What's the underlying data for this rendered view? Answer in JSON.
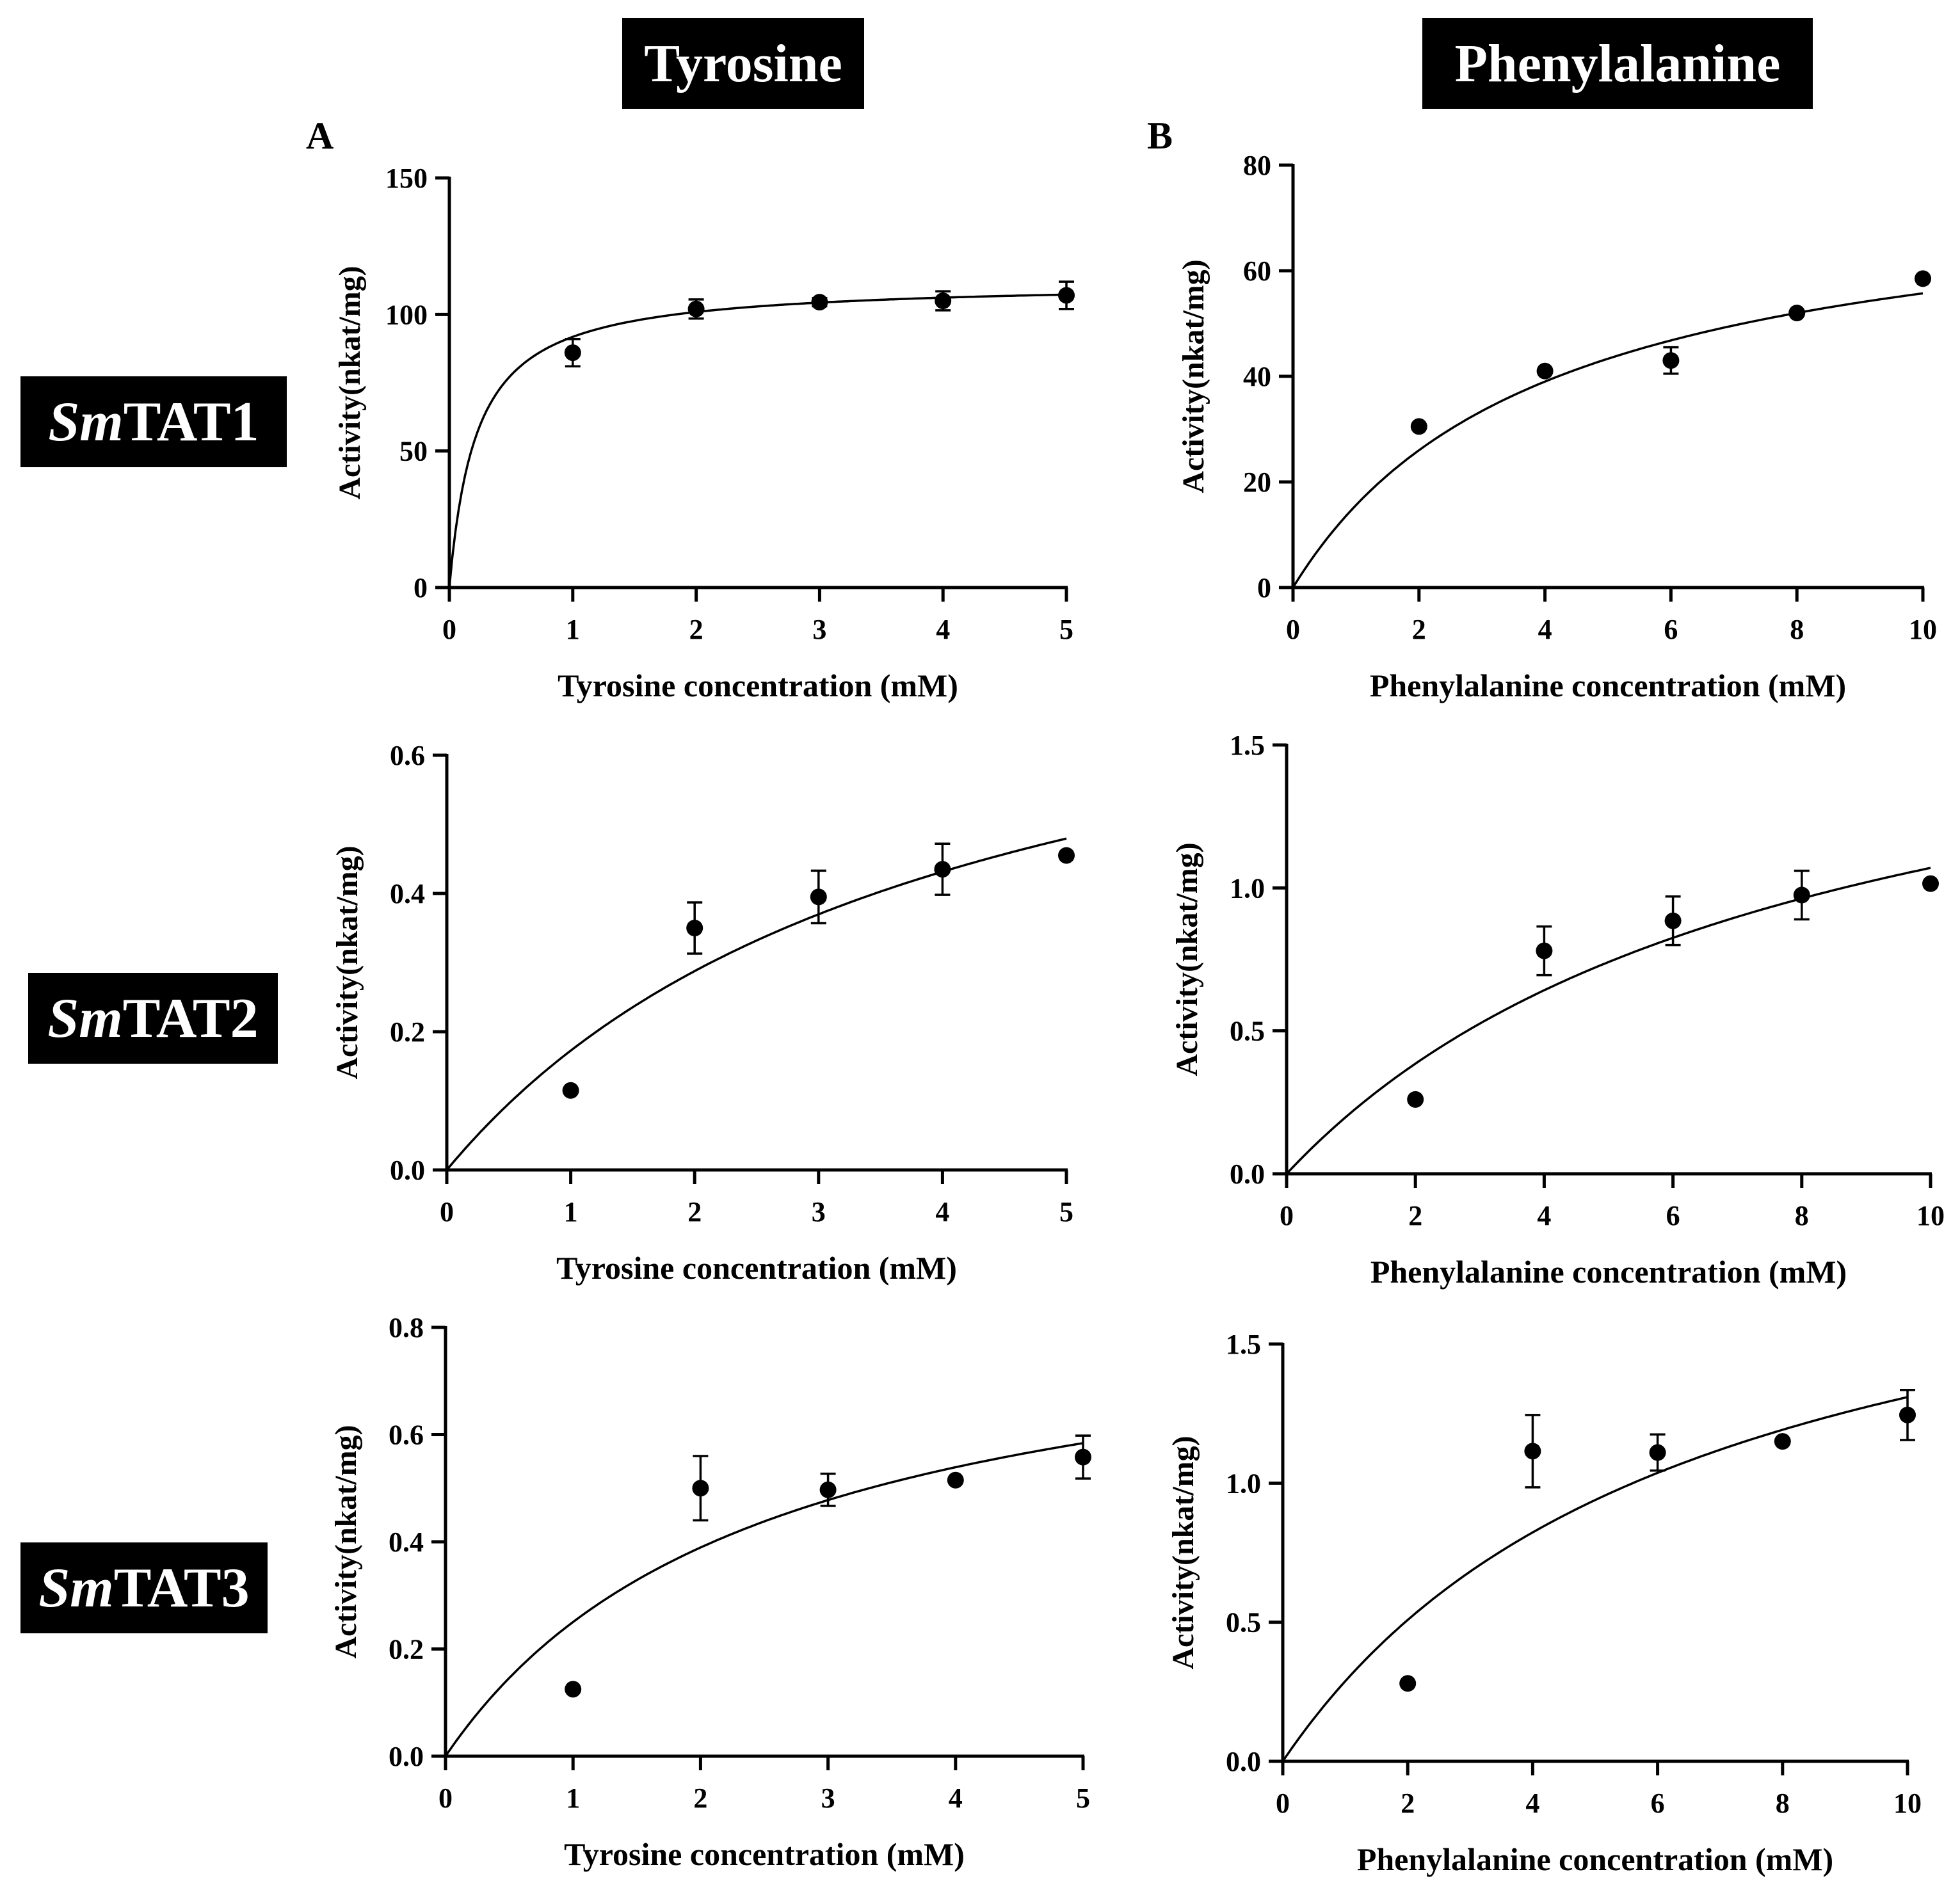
{
  "columns": [
    {
      "label": "Tyrosine",
      "panel_letter": "A"
    },
    {
      "label": "Phenylalanine",
      "panel_letter": "B"
    }
  ],
  "rows": [
    {
      "italic": "Sm",
      "rest": "TAT1"
    },
    {
      "italic": "Sm",
      "rest": "TAT2"
    },
    {
      "italic": "Sm",
      "rest": "TAT3"
    }
  ],
  "chart_data": [
    {
      "type": "scatter",
      "enzyme": "SmTAT1",
      "substrate": "Tyrosine",
      "xlabel": "Tyrosine concentration (mM)",
      "ylabel": "Activity(nkat/mg)",
      "xlim": [
        0,
        5
      ],
      "ylim": [
        0,
        150
      ],
      "xticks": [
        0,
        1,
        2,
        3,
        4,
        5
      ],
      "yticks": [
        0,
        50,
        100,
        150
      ],
      "points": [
        {
          "x": 1,
          "y": 86,
          "err": 5
        },
        {
          "x": 2,
          "y": 102,
          "err": 3.5
        },
        {
          "x": 3,
          "y": 104.5,
          "err": 1.5
        },
        {
          "x": 4,
          "y": 105,
          "err": 3.5
        },
        {
          "x": 5,
          "y": 107,
          "err": 5
        }
      ],
      "fit": {
        "model": "michaelis-menten",
        "vmax": 112,
        "km": 0.22
      }
    },
    {
      "type": "scatter",
      "enzyme": "SmTAT1",
      "substrate": "Phenylalanine",
      "xlabel": "Phenylalanine concentration (mM)",
      "ylabel": "Activity(nkat/mg)",
      "xlim": [
        0,
        10
      ],
      "ylim": [
        0,
        80
      ],
      "xticks": [
        0,
        2,
        4,
        6,
        8,
        10
      ],
      "yticks": [
        0,
        20,
        40,
        60,
        80
      ],
      "points": [
        {
          "x": 2,
          "y": 30.5,
          "err": 0
        },
        {
          "x": 4,
          "y": 41,
          "err": 0
        },
        {
          "x": 6,
          "y": 43,
          "err": 2.5
        },
        {
          "x": 8,
          "y": 52,
          "err": 0
        },
        {
          "x": 10,
          "y": 58.5,
          "err": 0
        }
      ],
      "fit": {
        "model": "michaelis-menten",
        "vmax": 78,
        "km": 4.0
      }
    },
    {
      "type": "scatter",
      "enzyme": "SmTAT2",
      "substrate": "Tyrosine",
      "xlabel": "Tyrosine concentration (mM)",
      "ylabel": "Activity(nkat/mg)",
      "xlim": [
        0,
        5
      ],
      "ylim": [
        0,
        0.6
      ],
      "xticks": [
        0,
        1,
        2,
        3,
        4,
        5
      ],
      "yticks": [
        "0.0",
        "0.2",
        "0.4",
        "0.6"
      ],
      "points": [
        {
          "x": 1,
          "y": 0.115,
          "err": 0
        },
        {
          "x": 2,
          "y": 0.35,
          "err": 0.037
        },
        {
          "x": 3,
          "y": 0.395,
          "err": 0.038
        },
        {
          "x": 4,
          "y": 0.435,
          "err": 0.037
        },
        {
          "x": 5,
          "y": 0.455,
          "err": 0
        }
      ],
      "fit": {
        "model": "michaelis-menten",
        "vmax": 0.863,
        "km": 4.0
      }
    },
    {
      "type": "scatter",
      "enzyme": "SmTAT2",
      "substrate": "Phenylalanine",
      "xlabel": "Phenylalanine concentration (mM)",
      "ylabel": "Activity(nkat/mg)",
      "xlim": [
        0,
        10
      ],
      "ylim": [
        0,
        1.5
      ],
      "xticks": [
        0,
        2,
        4,
        6,
        8,
        10
      ],
      "yticks": [
        "0.0",
        "0.5",
        "1.0",
        "1.5"
      ],
      "points": [
        {
          "x": 2,
          "y": 0.26,
          "err": 0
        },
        {
          "x": 4,
          "y": 0.78,
          "err": 0.085
        },
        {
          "x": 6,
          "y": 0.885,
          "err": 0.085
        },
        {
          "x": 8,
          "y": 0.975,
          "err": 0.085
        },
        {
          "x": 10,
          "y": 1.015,
          "err": 0
        }
      ],
      "fit": {
        "model": "michaelis-menten",
        "vmax": 1.926,
        "km": 8.0
      }
    },
    {
      "type": "scatter",
      "enzyme": "SmTAT3",
      "substrate": "Tyrosine",
      "xlabel": "Tyrosine concentration (mM)",
      "ylabel": "Activity(nkat/mg)",
      "xlim": [
        0,
        5
      ],
      "ylim": [
        0,
        0.8
      ],
      "xticks": [
        0,
        1,
        2,
        3,
        4,
        5
      ],
      "yticks": [
        "0.0",
        "0.2",
        "0.4",
        "0.6",
        "0.8"
      ],
      "points": [
        {
          "x": 1,
          "y": 0.125,
          "err": 0
        },
        {
          "x": 2,
          "y": 0.5,
          "err": 0.06
        },
        {
          "x": 3,
          "y": 0.497,
          "err": 0.03
        },
        {
          "x": 4,
          "y": 0.515,
          "err": 0
        },
        {
          "x": 5,
          "y": 0.558,
          "err": 0.04
        }
      ],
      "fit": {
        "model": "michaelis-menten",
        "vmax": 0.876,
        "km": 2.5
      }
    },
    {
      "type": "scatter",
      "enzyme": "SmTAT3",
      "substrate": "Phenylalanine",
      "xlabel": "Phenylalanine concentration (mM)",
      "ylabel": "Activity(nkat/mg)",
      "xlim": [
        0,
        10
      ],
      "ylim": [
        0,
        1.5
      ],
      "xticks": [
        0,
        2,
        4,
        6,
        8,
        10
      ],
      "yticks": [
        "0.0",
        "0.5",
        "1.0",
        "1.5"
      ],
      "points": [
        {
          "x": 2,
          "y": 0.28,
          "err": 0
        },
        {
          "x": 4,
          "y": 1.115,
          "err": 0.13
        },
        {
          "x": 6,
          "y": 1.11,
          "err": 0.065
        },
        {
          "x": 8,
          "y": 1.15,
          "err": 0
        },
        {
          "x": 10,
          "y": 1.245,
          "err": 0.09
        }
      ],
      "fit": {
        "model": "michaelis-menten",
        "vmax": 2.16,
        "km": 6.5
      }
    }
  ]
}
